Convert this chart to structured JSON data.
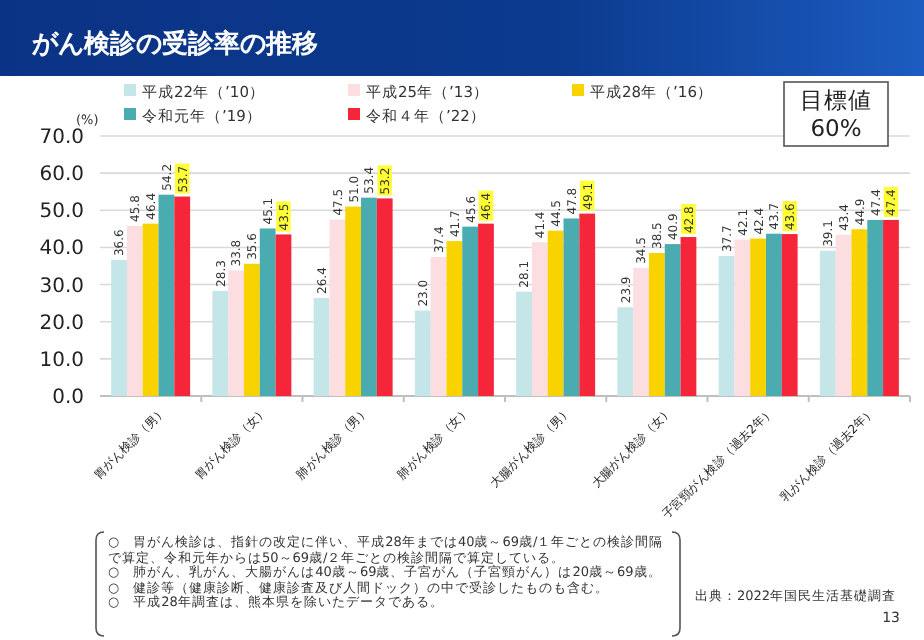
{
  "chart_data": {
    "type": "bar",
    "title": "がん検診の受診率の推移",
    "ylabel": "(%)",
    "categories": [
      "胃がん検診（男）",
      "胃がん検診（女）",
      "肺がん検診（男）",
      "肺がん検診（女）",
      "大腸がん検診（男）",
      "大腸がん検診（女）",
      "子宮頸がん検診（過去2年）",
      "乳がん検診（過去2年）"
    ],
    "series": [
      {
        "name": "平成22年（’10）",
        "color": "#c5e6e8",
        "values": [
          36.6,
          28.3,
          26.4,
          23.0,
          28.1,
          23.9,
          37.7,
          39.1
        ],
        "value_labels": [
          "36.6",
          "28.3",
          "26.4",
          "23.0",
          "28.1",
          "23.9",
          "37.7",
          "39.1"
        ]
      },
      {
        "name": "平成25年（’13）",
        "color": "#fcdde0",
        "values": [
          45.8,
          33.8,
          47.5,
          37.4,
          41.4,
          34.5,
          42.1,
          43.4
        ],
        "value_labels": [
          "45.8",
          "33.8",
          "47.5",
          "37.4",
          "41.4",
          "34.5",
          "42.1",
          "43.4"
        ]
      },
      {
        "name": "平成28年（’16）",
        "color": "#f8d300",
        "values": [
          46.4,
          35.6,
          51.0,
          41.7,
          44.5,
          38.5,
          42.4,
          44.9
        ],
        "value_labels": [
          "46.4",
          "35.6",
          "51.0",
          "41.7",
          "44.5",
          "38.5",
          "42.4",
          "44.9"
        ]
      },
      {
        "name": "令和元年（’19）",
        "color": "#4aacb0",
        "values": [
          54.2,
          45.1,
          53.4,
          45.6,
          47.8,
          40.9,
          43.7,
          47.4
        ],
        "value_labels": [
          "54.2",
          "45.1",
          "53.4",
          "45.6",
          "47.8",
          "40.9",
          "43.7",
          "47.4"
        ]
      },
      {
        "name": "令和４年（’22）",
        "color": "#f5263a",
        "values": [
          53.7,
          43.5,
          53.2,
          46.4,
          49.1,
          42.8,
          43.6,
          47.4
        ],
        "value_labels": [
          "53.7",
          "43.5",
          "53.2",
          "46.4",
          "49.1",
          "42.8",
          "43.6",
          "47.4"
        ]
      }
    ],
    "ylim": [
      0,
      70
    ],
    "yticks": [
      {
        "value": 0,
        "label": "0.0"
      },
      {
        "value": 10,
        "label": "10.0"
      },
      {
        "value": 20,
        "label": "20.0"
      },
      {
        "value": 30,
        "label": "30.0"
      },
      {
        "value": 40,
        "label": "40.0"
      },
      {
        "value": 50,
        "label": "50.0"
      },
      {
        "value": 60,
        "label": "60.0"
      },
      {
        "value": 70,
        "label": "70.0"
      }
    ],
    "grid": "y",
    "legend": "top left",
    "annotations": [
      "目標値\n60%",
      "○　胃がん検診は、指針の改定に伴い、平成28年までは40歳～69歳/１年ごとの検診間隔で算定、令和元年からは50～69歳/２年ごとの検診間隔で算定している。",
      "○　肺がん、乳がん、大腸がんは40歳～69歳、子宮がん（子宮頸がん）は20歳～69歳。",
      "○　健診等（健康診断、健康診査及び人間ドック）の中で受診したものも含む。",
      "○　平成28年調査は、熊本県を除いたデータである。",
      "出典：2022年国民生活基礎調査",
      "13"
    ]
  }
}
